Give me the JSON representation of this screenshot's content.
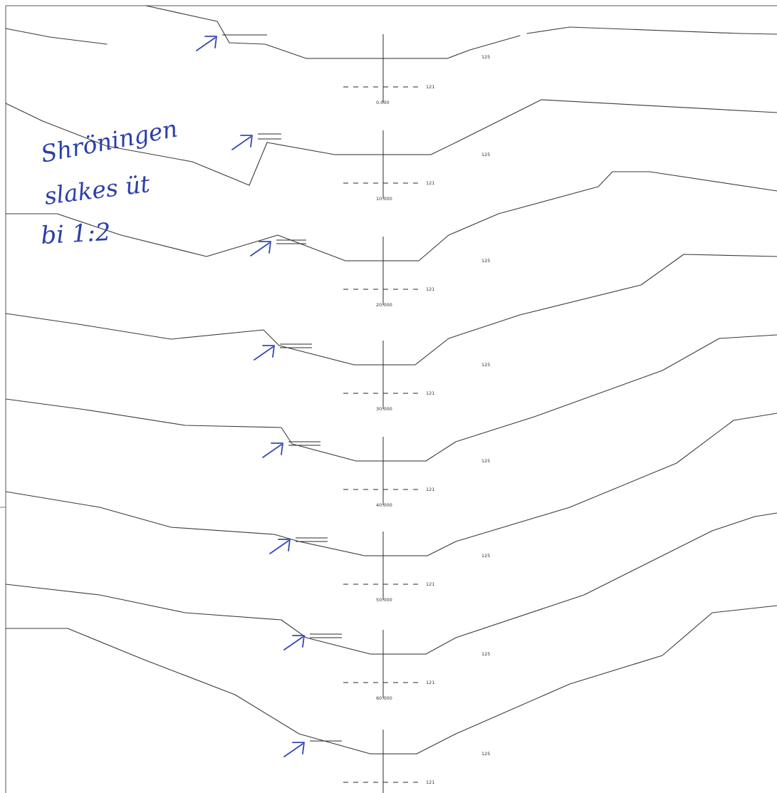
{
  "drawing": {
    "elevation_upper": "125",
    "elevation_lower": "121"
  },
  "sections": [
    {
      "station": "0.000"
    },
    {
      "station": "10.000"
    },
    {
      "station": "20.000"
    },
    {
      "station": "30.000"
    },
    {
      "station": "40.000"
    },
    {
      "station": "50.000"
    },
    {
      "station": "60.000"
    },
    {
      "station": ""
    }
  ],
  "handwritten_note": {
    "line1": "Shröningen",
    "line2": "slakes üt",
    "line3": "bi 1:2",
    "color": "#2b3fa8"
  },
  "colors": {
    "line": "#3a3a3a",
    "annotation": "#3548b8"
  }
}
